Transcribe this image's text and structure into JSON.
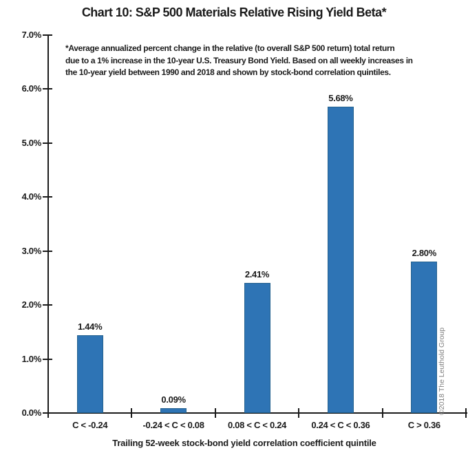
{
  "chart_data": {
    "type": "bar",
    "title": "Chart 10: S&P 500 Materials Relative Rising Yield Beta*",
    "categories": [
      "C < -0.24",
      "-0.24 < C < 0.08",
      "0.08 < C < 0.24",
      "0.24 < C < 0.36",
      "C > 0.36"
    ],
    "values": [
      1.44,
      0.09,
      2.41,
      5.68,
      2.8
    ],
    "value_labels": [
      "1.44%",
      "0.09%",
      "2.41%",
      "5.68%",
      "2.80%"
    ],
    "xlabel": "Trailing 52-week stock-bond yield correlation coefficient quintile",
    "ylabel": "",
    "ylim": [
      0,
      7
    ],
    "ytick_labels": [
      "0.0%",
      "1.0%",
      "2.0%",
      "3.0%",
      "4.0%",
      "5.0%",
      "6.0%",
      "7.0%"
    ],
    "grid": false,
    "legend": "none",
    "bar_color": "#2E74B5",
    "bar_border_color": "#24618E",
    "axis_color": "#1a1a1a",
    "annotations": {
      "footnote_lines": [
        "*Average annualized percent change in the relative (to overall S&P 500 return) total return",
        "due to a 1% increase in the 10-year U.S. Treasury Bond Yield. Based on all weekly increases in",
        "the 10-year yield between 1990 and 2018 and shown by stock-bond correlation quintiles."
      ],
      "copyright": "©2018 The Leuthold Group"
    }
  }
}
